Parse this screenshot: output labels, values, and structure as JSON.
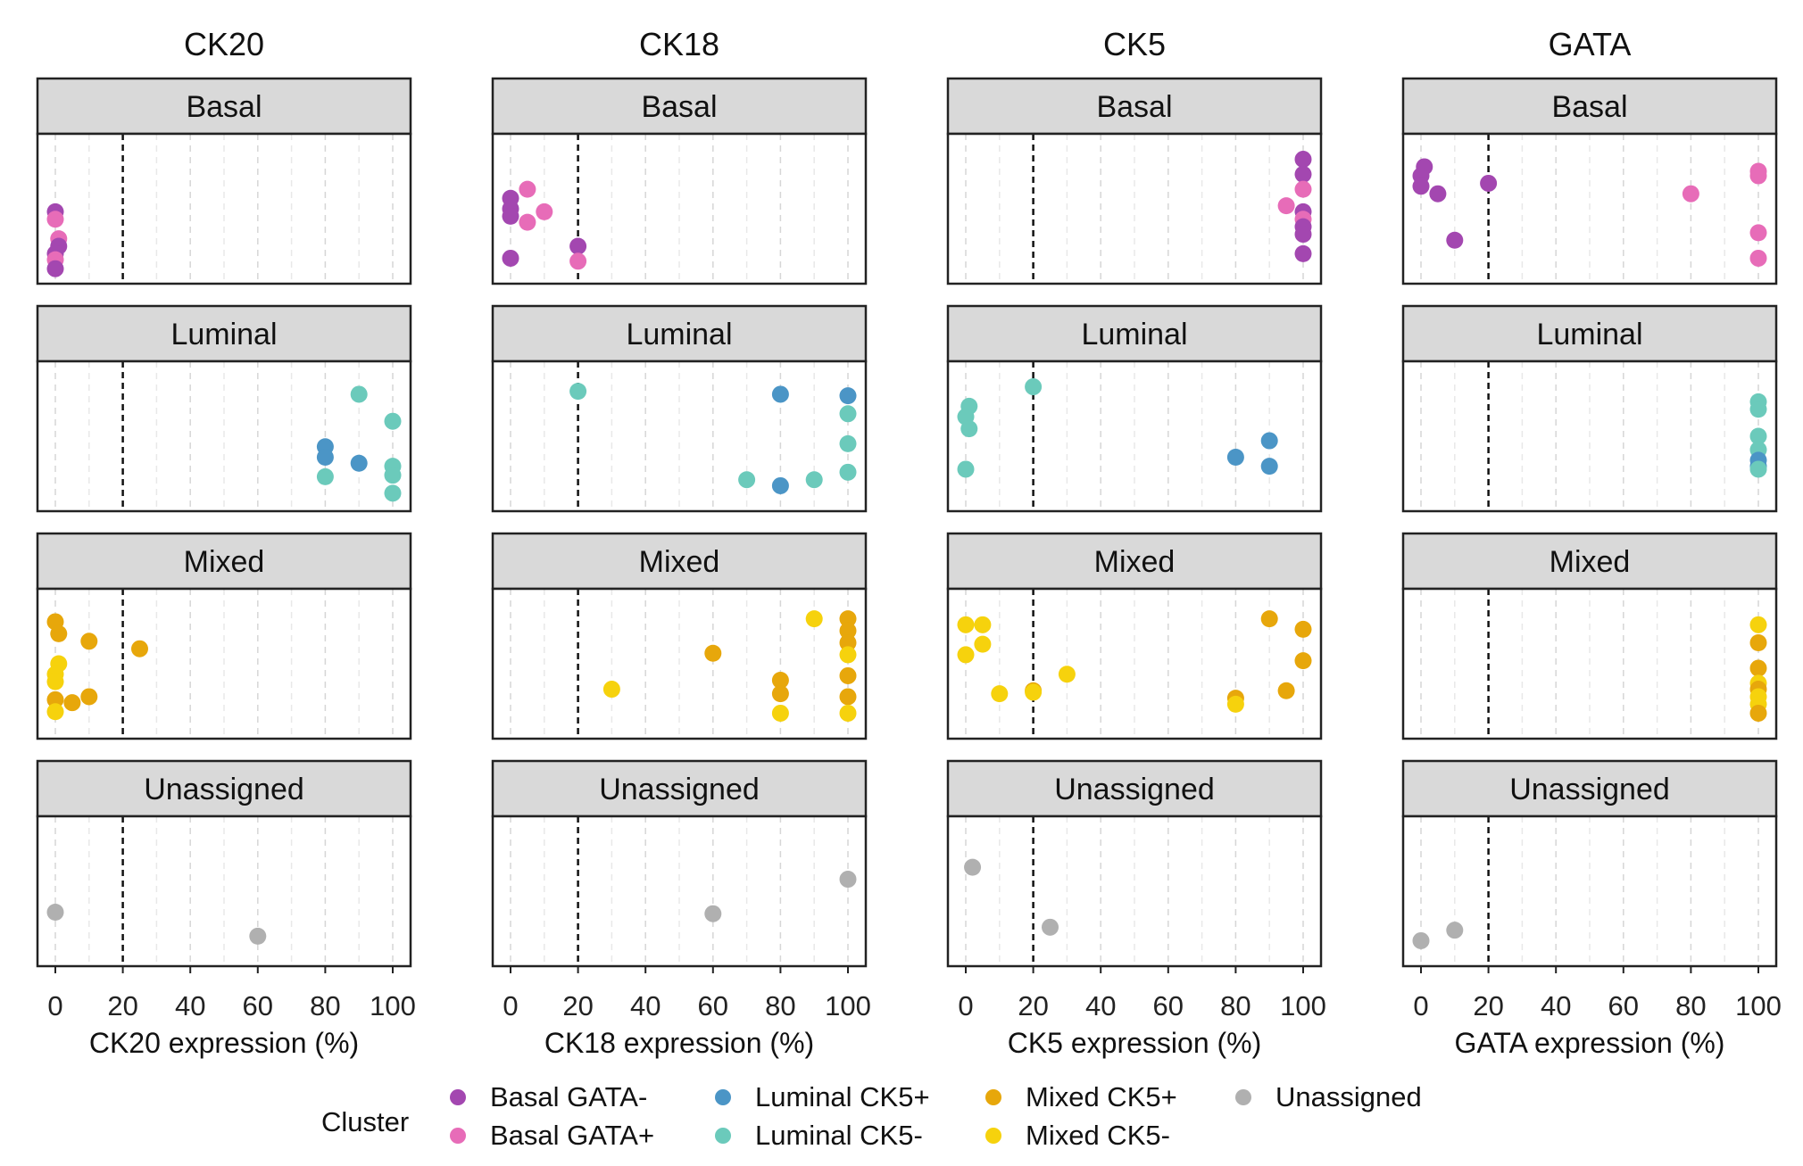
{
  "chart_data": {
    "type": "scatter",
    "columns": [
      {
        "title": "CK20",
        "xlabel": "CK20 expression (%)"
      },
      {
        "title": "CK18",
        "xlabel": "CK18 expression (%)"
      },
      {
        "title": "CK5",
        "xlabel": "CK5 expression (%)"
      },
      {
        "title": "GATA",
        "xlabel": "GATA expression (%)"
      }
    ],
    "rows": [
      "Basal",
      "Luminal",
      "Mixed",
      "Unassigned"
    ],
    "xlim": [
      0,
      100
    ],
    "xticks": [
      "0",
      "20",
      "40",
      "60",
      "80",
      "100"
    ],
    "threshold": 20,
    "grid": true,
    "legend": {
      "title": "Cluster",
      "position": "bottom",
      "items": [
        {
          "key": "basal_neg",
          "label": "Basal GATA-",
          "color": "#a347b0"
        },
        {
          "key": "basal_pos",
          "label": "Basal GATA+",
          "color": "#e76cb8"
        },
        {
          "key": "lum_pos",
          "label": "Luminal CK5+",
          "color": "#4b95c6"
        },
        {
          "key": "lum_neg",
          "label": "Luminal CK5-",
          "color": "#6bcabb"
        },
        {
          "key": "mix_pos",
          "label": "Mixed CK5+",
          "color": "#e7a70b"
        },
        {
          "key": "mix_neg",
          "label": "Mixed CK5-",
          "color": "#f6d20d"
        },
        {
          "key": "unassigned",
          "label": "Unassigned",
          "color": "#b0b0b0"
        }
      ]
    },
    "panels": [
      [
        {
          "points": [
            {
              "x": 0,
              "y": 0.48,
              "g": "basal_neg"
            },
            {
              "x": 0,
              "y": 0.43,
              "g": "basal_pos"
            },
            {
              "x": 1,
              "y": 0.3,
              "g": "basal_pos"
            },
            {
              "x": 1,
              "y": 0.25,
              "g": "basal_neg"
            },
            {
              "x": 0,
              "y": 0.2,
              "g": "basal_neg"
            },
            {
              "x": 0,
              "y": 0.16,
              "g": "basal_pos"
            },
            {
              "x": 0,
              "y": 0.1,
              "g": "basal_neg"
            }
          ]
        },
        {
          "points": [
            {
              "x": 90,
              "y": 0.78,
              "g": "lum_neg"
            },
            {
              "x": 100,
              "y": 0.6,
              "g": "lum_neg"
            },
            {
              "x": 80,
              "y": 0.43,
              "g": "lum_pos"
            },
            {
              "x": 80,
              "y": 0.36,
              "g": "lum_pos"
            },
            {
              "x": 90,
              "y": 0.32,
              "g": "lum_pos"
            },
            {
              "x": 100,
              "y": 0.3,
              "g": "lum_neg"
            },
            {
              "x": 100,
              "y": 0.24,
              "g": "lum_neg"
            },
            {
              "x": 80,
              "y": 0.23,
              "g": "lum_neg"
            },
            {
              "x": 100,
              "y": 0.12,
              "g": "lum_neg"
            }
          ]
        },
        {
          "points": [
            {
              "x": 0,
              "y": 0.78,
              "g": "mix_pos"
            },
            {
              "x": 1,
              "y": 0.7,
              "g": "mix_pos"
            },
            {
              "x": 10,
              "y": 0.65,
              "g": "mix_pos"
            },
            {
              "x": 25,
              "y": 0.6,
              "g": "mix_pos"
            },
            {
              "x": 1,
              "y": 0.5,
              "g": "mix_neg"
            },
            {
              "x": 0,
              "y": 0.43,
              "g": "mix_neg"
            },
            {
              "x": 0,
              "y": 0.38,
              "g": "mix_neg"
            },
            {
              "x": 10,
              "y": 0.28,
              "g": "mix_pos"
            },
            {
              "x": 0,
              "y": 0.26,
              "g": "mix_pos"
            },
            {
              "x": 5,
              "y": 0.24,
              "g": "mix_pos"
            },
            {
              "x": 0,
              "y": 0.18,
              "g": "mix_neg"
            }
          ]
        },
        {
          "points": [
            {
              "x": 0,
              "y": 0.36,
              "g": "unassigned"
            },
            {
              "x": 60,
              "y": 0.2,
              "g": "unassigned"
            }
          ]
        }
      ],
      [
        {
          "points": [
            {
              "x": 5,
              "y": 0.63,
              "g": "basal_pos"
            },
            {
              "x": 0,
              "y": 0.57,
              "g": "basal_neg"
            },
            {
              "x": 0,
              "y": 0.5,
              "g": "basal_neg"
            },
            {
              "x": 10,
              "y": 0.48,
              "g": "basal_pos"
            },
            {
              "x": 0,
              "y": 0.45,
              "g": "basal_neg"
            },
            {
              "x": 5,
              "y": 0.41,
              "g": "basal_pos"
            },
            {
              "x": 20,
              "y": 0.25,
              "g": "basal_neg"
            },
            {
              "x": 0,
              "y": 0.17,
              "g": "basal_neg"
            },
            {
              "x": 20,
              "y": 0.15,
              "g": "basal_pos"
            }
          ]
        },
        {
          "points": [
            {
              "x": 20,
              "y": 0.8,
              "g": "lum_neg"
            },
            {
              "x": 80,
              "y": 0.78,
              "g": "lum_pos"
            },
            {
              "x": 100,
              "y": 0.77,
              "g": "lum_pos"
            },
            {
              "x": 100,
              "y": 0.65,
              "g": "lum_neg"
            },
            {
              "x": 100,
              "y": 0.45,
              "g": "lum_neg"
            },
            {
              "x": 100,
              "y": 0.26,
              "g": "lum_neg"
            },
            {
              "x": 70,
              "y": 0.21,
              "g": "lum_neg"
            },
            {
              "x": 90,
              "y": 0.21,
              "g": "lum_neg"
            },
            {
              "x": 80,
              "y": 0.17,
              "g": "lum_pos"
            }
          ]
        },
        {
          "points": [
            {
              "x": 90,
              "y": 0.8,
              "g": "mix_neg"
            },
            {
              "x": 100,
              "y": 0.8,
              "g": "mix_pos"
            },
            {
              "x": 100,
              "y": 0.72,
              "g": "mix_pos"
            },
            {
              "x": 100,
              "y": 0.64,
              "g": "mix_pos"
            },
            {
              "x": 60,
              "y": 0.57,
              "g": "mix_pos"
            },
            {
              "x": 100,
              "y": 0.56,
              "g": "mix_neg"
            },
            {
              "x": 100,
              "y": 0.42,
              "g": "mix_pos"
            },
            {
              "x": 80,
              "y": 0.39,
              "g": "mix_pos"
            },
            {
              "x": 30,
              "y": 0.33,
              "g": "mix_neg"
            },
            {
              "x": 80,
              "y": 0.3,
              "g": "mix_pos"
            },
            {
              "x": 100,
              "y": 0.28,
              "g": "mix_pos"
            },
            {
              "x": 80,
              "y": 0.17,
              "g": "mix_neg"
            },
            {
              "x": 100,
              "y": 0.17,
              "g": "mix_neg"
            }
          ]
        },
        {
          "points": [
            {
              "x": 100,
              "y": 0.58,
              "g": "unassigned"
            },
            {
              "x": 60,
              "y": 0.35,
              "g": "unassigned"
            }
          ]
        }
      ],
      [
        {
          "points": [
            {
              "x": 100,
              "y": 0.83,
              "g": "basal_neg"
            },
            {
              "x": 100,
              "y": 0.73,
              "g": "basal_neg"
            },
            {
              "x": 100,
              "y": 0.63,
              "g": "basal_pos"
            },
            {
              "x": 95,
              "y": 0.52,
              "g": "basal_pos"
            },
            {
              "x": 100,
              "y": 0.48,
              "g": "basal_neg"
            },
            {
              "x": 100,
              "y": 0.43,
              "g": "basal_pos"
            },
            {
              "x": 100,
              "y": 0.38,
              "g": "basal_neg"
            },
            {
              "x": 100,
              "y": 0.33,
              "g": "basal_neg"
            },
            {
              "x": 100,
              "y": 0.2,
              "g": "basal_neg"
            }
          ]
        },
        {
          "points": [
            {
              "x": 20,
              "y": 0.83,
              "g": "lum_neg"
            },
            {
              "x": 1,
              "y": 0.7,
              "g": "lum_neg"
            },
            {
              "x": 0,
              "y": 0.63,
              "g": "lum_neg"
            },
            {
              "x": 1,
              "y": 0.55,
              "g": "lum_neg"
            },
            {
              "x": 90,
              "y": 0.47,
              "g": "lum_pos"
            },
            {
              "x": 80,
              "y": 0.36,
              "g": "lum_pos"
            },
            {
              "x": 90,
              "y": 0.3,
              "g": "lum_pos"
            },
            {
              "x": 0,
              "y": 0.28,
              "g": "lum_neg"
            }
          ]
        },
        {
          "points": [
            {
              "x": 0,
              "y": 0.76,
              "g": "mix_neg"
            },
            {
              "x": 5,
              "y": 0.76,
              "g": "mix_neg"
            },
            {
              "x": 90,
              "y": 0.8,
              "g": "mix_pos"
            },
            {
              "x": 100,
              "y": 0.73,
              "g": "mix_pos"
            },
            {
              "x": 5,
              "y": 0.63,
              "g": "mix_neg"
            },
            {
              "x": 0,
              "y": 0.56,
              "g": "mix_neg"
            },
            {
              "x": 100,
              "y": 0.52,
              "g": "mix_pos"
            },
            {
              "x": 30,
              "y": 0.43,
              "g": "mix_neg"
            },
            {
              "x": 20,
              "y": 0.32,
              "g": "mix_pos"
            },
            {
              "x": 20,
              "y": 0.31,
              "g": "mix_neg"
            },
            {
              "x": 10,
              "y": 0.3,
              "g": "mix_neg"
            },
            {
              "x": 95,
              "y": 0.32,
              "g": "mix_pos"
            },
            {
              "x": 80,
              "y": 0.27,
              "g": "mix_pos"
            },
            {
              "x": 80,
              "y": 0.23,
              "g": "mix_neg"
            }
          ]
        },
        {
          "points": [
            {
              "x": 2,
              "y": 0.66,
              "g": "unassigned"
            },
            {
              "x": 25,
              "y": 0.26,
              "g": "unassigned"
            }
          ]
        }
      ],
      [
        {
          "points": [
            {
              "x": 1,
              "y": 0.78,
              "g": "basal_neg"
            },
            {
              "x": 0,
              "y": 0.72,
              "g": "basal_neg"
            },
            {
              "x": 0,
              "y": 0.65,
              "g": "basal_neg"
            },
            {
              "x": 5,
              "y": 0.6,
              "g": "basal_neg"
            },
            {
              "x": 20,
              "y": 0.67,
              "g": "basal_neg"
            },
            {
              "x": 80,
              "y": 0.6,
              "g": "basal_pos"
            },
            {
              "x": 100,
              "y": 0.75,
              "g": "basal_pos"
            },
            {
              "x": 100,
              "y": 0.72,
              "g": "basal_pos"
            },
            {
              "x": 10,
              "y": 0.29,
              "g": "basal_neg"
            },
            {
              "x": 100,
              "y": 0.34,
              "g": "basal_pos"
            },
            {
              "x": 100,
              "y": 0.17,
              "g": "basal_pos"
            }
          ]
        },
        {
          "points": [
            {
              "x": 100,
              "y": 0.73,
              "g": "lum_neg"
            },
            {
              "x": 100,
              "y": 0.68,
              "g": "lum_neg"
            },
            {
              "x": 100,
              "y": 0.5,
              "g": "lum_neg"
            },
            {
              "x": 100,
              "y": 0.41,
              "g": "lum_neg"
            },
            {
              "x": 100,
              "y": 0.34,
              "g": "lum_pos"
            },
            {
              "x": 100,
              "y": 0.3,
              "g": "lum_pos"
            },
            {
              "x": 100,
              "y": 0.28,
              "g": "lum_neg"
            }
          ]
        },
        {
          "points": [
            {
              "x": 100,
              "y": 0.76,
              "g": "mix_neg"
            },
            {
              "x": 100,
              "y": 0.64,
              "g": "mix_pos"
            },
            {
              "x": 100,
              "y": 0.47,
              "g": "mix_pos"
            },
            {
              "x": 100,
              "y": 0.37,
              "g": "mix_neg"
            },
            {
              "x": 100,
              "y": 0.33,
              "g": "mix_pos"
            },
            {
              "x": 100,
              "y": 0.28,
              "g": "mix_neg"
            },
            {
              "x": 100,
              "y": 0.23,
              "g": "mix_neg"
            },
            {
              "x": 100,
              "y": 0.17,
              "g": "mix_pos"
            }
          ]
        },
        {
          "points": [
            {
              "x": 10,
              "y": 0.24,
              "g": "unassigned"
            },
            {
              "x": 0,
              "y": 0.17,
              "g": "unassigned"
            }
          ]
        }
      ]
    ]
  }
}
